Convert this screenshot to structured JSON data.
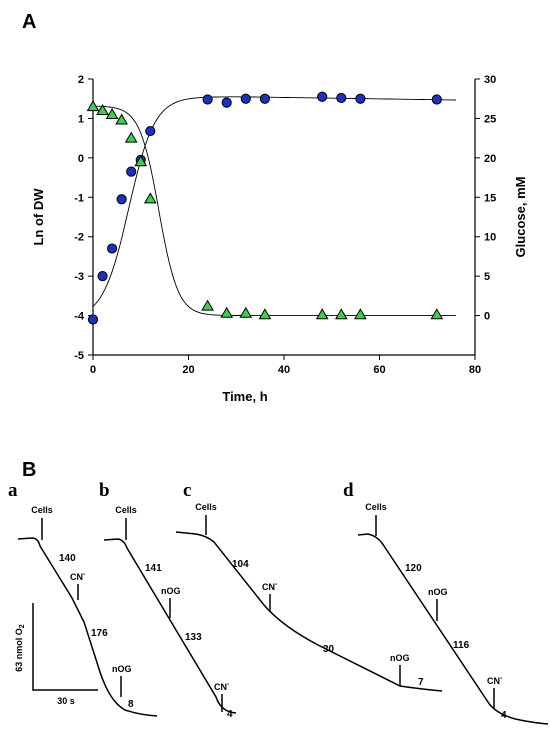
{
  "panel_a_label": "A",
  "panel_b_label": "B",
  "chart_data": [
    {
      "type": "scatter",
      "title": "",
      "xlabel": "Time, h",
      "ylabel": "Ln of DW",
      "y2label": "Glucose, mM",
      "xlim": [
        0,
        80
      ],
      "ylim": [
        -5,
        2
      ],
      "y2lim": [
        -5,
        30
      ],
      "xticks": [
        "0",
        "20",
        "40",
        "60",
        "80"
      ],
      "yticks": [
        "-5",
        "-4",
        "-3",
        "-2",
        "-1",
        "0",
        "1",
        "2"
      ],
      "y2ticks": [
        "0",
        "5",
        "10",
        "15",
        "20",
        "25",
        "30"
      ],
      "series": [
        {
          "marker": "circle",
          "color": "#1f2fbf",
          "axis": "left",
          "x": [
            0,
            2,
            4,
            6,
            8,
            10,
            12,
            24,
            28,
            32,
            36,
            48,
            52,
            56,
            72
          ],
          "y": [
            -4.1,
            -3.0,
            -2.3,
            -1.05,
            -0.35,
            -0.05,
            0.68,
            1.48,
            1.4,
            1.5,
            1.5,
            1.55,
            1.52,
            1.5,
            1.48
          ]
        },
        {
          "marker": "triangle",
          "color": "#3cd04a",
          "axis": "right",
          "x": [
            0,
            2,
            4,
            6,
            8,
            10,
            12,
            24,
            28,
            32,
            36,
            48,
            52,
            56,
            72
          ],
          "y": [
            26.5,
            26.0,
            25.5,
            24.8,
            22.5,
            19.5,
            14.8,
            1.2,
            0.3,
            0.3,
            0.1,
            0.1,
            0.1,
            0.1,
            0.1
          ]
        }
      ]
    },
    {
      "type": "line",
      "description_units": "oxygen consumption traces",
      "scale_label": "63 nmol O2",
      "scale_label_main": "63 nmol O",
      "scale_label_sub": "2",
      "time_scale_label": "30 s",
      "traces": [
        {
          "letter": "a",
          "annotations": [
            {
              "text": "Cells",
              "kind": "marker"
            },
            {
              "text": "140",
              "kind": "rate"
            },
            {
              "text": "CN",
              "sup": "-",
              "kind": "marker"
            },
            {
              "text": "176",
              "kind": "rate"
            },
            {
              "text": "nOG",
              "kind": "marker"
            },
            {
              "text": "8",
              "kind": "rate"
            }
          ]
        },
        {
          "letter": "b",
          "annotations": [
            {
              "text": "Cells",
              "kind": "marker"
            },
            {
              "text": "141",
              "kind": "rate"
            },
            {
              "text": "nOG",
              "kind": "marker"
            },
            {
              "text": "133",
              "kind": "rate"
            },
            {
              "text": "CN",
              "sup": "-",
              "kind": "marker"
            },
            {
              "text": "4",
              "kind": "rate"
            }
          ]
        },
        {
          "letter": "c",
          "annotations": [
            {
              "text": "Cells",
              "kind": "marker"
            },
            {
              "text": "104",
              "kind": "rate"
            },
            {
              "text": "CN",
              "sup": "-",
              "kind": "marker"
            },
            {
              "text": "30",
              "kind": "rate"
            },
            {
              "text": "nOG",
              "kind": "marker"
            },
            {
              "text": "7",
              "kind": "rate"
            }
          ]
        },
        {
          "letter": "d",
          "annotations": [
            {
              "text": "Cells",
              "kind": "marker"
            },
            {
              "text": "120",
              "kind": "rate"
            },
            {
              "text": "nOG",
              "kind": "marker"
            },
            {
              "text": "116",
              "kind": "rate"
            },
            {
              "text": "CN",
              "sup": "-",
              "kind": "marker"
            },
            {
              "text": "4",
              "kind": "rate"
            }
          ]
        }
      ]
    }
  ]
}
